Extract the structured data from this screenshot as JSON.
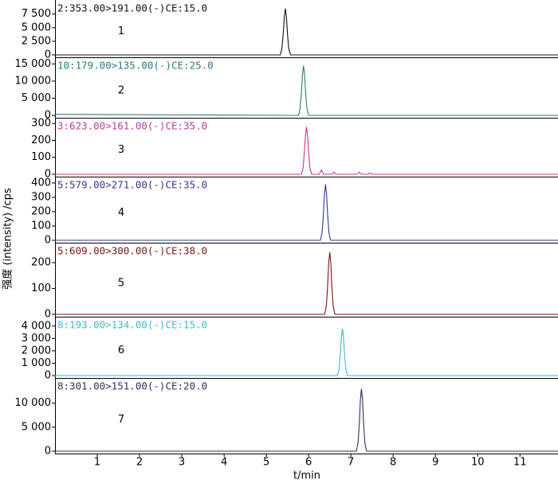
{
  "chart_data": [
    {
      "type": "line",
      "title": "2:353.00>191.00(-)CE:15.0",
      "label": "1",
      "y_label": "强度 (intensity) /cps",
      "color": "#111111",
      "xlim": [
        0,
        11.9
      ],
      "ylim": [
        0,
        9500
      ],
      "yticks": [
        0,
        {
          "value": 2500,
          "label": "2 500"
        },
        {
          "value": 5000,
          "label": "5 000"
        },
        {
          "value": 7500,
          "label": "7 500"
        }
      ],
      "x": [
        0,
        5.33,
        5.37,
        5.4,
        5.425,
        5.45,
        5.475,
        5.5,
        5.53,
        5.57,
        11.9
      ],
      "values": [
        0,
        0,
        1200,
        3900,
        7000,
        8500,
        7000,
        3900,
        1200,
        0,
        0
      ]
    },
    {
      "type": "line",
      "title": "10:179.00>135.00(-)CE:25.0",
      "label": "2",
      "color": "#2e7b78",
      "xlim": [
        0,
        11.9
      ],
      "ylim": [
        0,
        16000
      ],
      "yticks": [
        0,
        {
          "value": 5000,
          "label": "5 000"
        },
        {
          "value": 10000,
          "label": "10 000"
        },
        {
          "value": 15000,
          "label": "15 000"
        }
      ],
      "x": [
        0,
        5.76,
        5.8,
        5.83,
        5.855,
        5.88,
        5.905,
        5.93,
        5.96,
        6.0,
        11.9
      ],
      "values": [
        300,
        0,
        2000,
        6700,
        11900,
        14500,
        11900,
        6700,
        2000,
        0,
        0
      ]
    },
    {
      "type": "line",
      "title": "3:623.00>161.00(-)CE:35.0",
      "label": "3",
      "color": "#c03a9c",
      "xlim": [
        0,
        11.9
      ],
      "ylim": [
        0,
        315
      ],
      "yticks": [
        0,
        100,
        200,
        300
      ],
      "x": [
        0,
        5.83,
        5.87,
        5.9,
        5.925,
        5.95,
        5.975,
        6.0,
        6.03,
        6.07,
        6.25,
        6.3,
        6.35,
        6.55,
        6.6,
        6.65,
        7.15,
        7.2,
        7.25,
        7.4,
        7.45,
        7.5,
        11.9
      ],
      "values": [
        0,
        0,
        40,
        130,
        230,
        280,
        230,
        130,
        40,
        0,
        0,
        25,
        0,
        0,
        12,
        0,
        0,
        12,
        0,
        0,
        8,
        0,
        0
      ]
    },
    {
      "type": "line",
      "title": "5:579.00>271.00(-)CE:35.0",
      "label": "4",
      "color": "#2f3a8c",
      "xlim": [
        0,
        11.9
      ],
      "ylim": [
        0,
        422
      ],
      "yticks": [
        0,
        100,
        200,
        300,
        400
      ],
      "x": [
        0,
        6.28,
        6.32,
        6.35,
        6.375,
        6.4,
        6.425,
        6.45,
        6.48,
        6.52,
        11.9
      ],
      "values": [
        0,
        0,
        55,
        180,
        320,
        390,
        320,
        180,
        55,
        0,
        0
      ]
    },
    {
      "type": "line",
      "title": "5:609.00>300.00(-)CE:38.0",
      "label": "5",
      "color": "#7a1414",
      "xlim": [
        0,
        11.9
      ],
      "ylim": [
        0,
        265
      ],
      "yticks": [
        0,
        100,
        200
      ],
      "x": [
        0,
        6.38,
        6.42,
        6.45,
        6.475,
        6.5,
        6.525,
        6.55,
        6.58,
        6.62,
        11.9
      ],
      "values": [
        0,
        0,
        34,
        110,
        197,
        240,
        197,
        110,
        34,
        0,
        0
      ]
    },
    {
      "type": "line",
      "title": "8:193.00>134.00(-)CE:15.0",
      "label": "6",
      "color": "#3bbccc",
      "xlim": [
        0,
        11.9
      ],
      "ylim": [
        0,
        4500
      ],
      "yticks": [
        0,
        {
          "value": 1000,
          "label": "1 000"
        },
        {
          "value": 2000,
          "label": "2 000"
        },
        {
          "value": 3000,
          "label": "3 000"
        },
        {
          "value": 4000,
          "label": "4 000"
        }
      ],
      "x": [
        0,
        6.68,
        6.72,
        6.75,
        6.775,
        6.8,
        6.825,
        6.85,
        6.88,
        6.92,
        11.9
      ],
      "values": [
        0,
        0,
        530,
        1750,
        3100,
        3800,
        3100,
        1750,
        530,
        0,
        0
      ]
    },
    {
      "type": "line",
      "title": "8:301.00>151.00(-)CE:20.0",
      "label": "7",
      "color": "#3d2a5e",
      "xlim": [
        0,
        11.9
      ],
      "ylim": [
        0,
        14600
      ],
      "yticks": [
        0,
        {
          "value": 5000,
          "label": "5 000"
        },
        {
          "value": 10000,
          "label": "10 000"
        }
      ],
      "x": [
        0,
        7.13,
        7.17,
        7.2,
        7.225,
        7.25,
        7.275,
        7.3,
        7.33,
        7.37,
        11.9
      ],
      "values": [
        0,
        0,
        1800,
        5900,
        10700,
        13000,
        10700,
        5900,
        1800,
        0,
        0
      ],
      "x_label": "t/min",
      "xticks": [
        1,
        2,
        3,
        4,
        5,
        6,
        7,
        8,
        9,
        10,
        11
      ]
    }
  ]
}
